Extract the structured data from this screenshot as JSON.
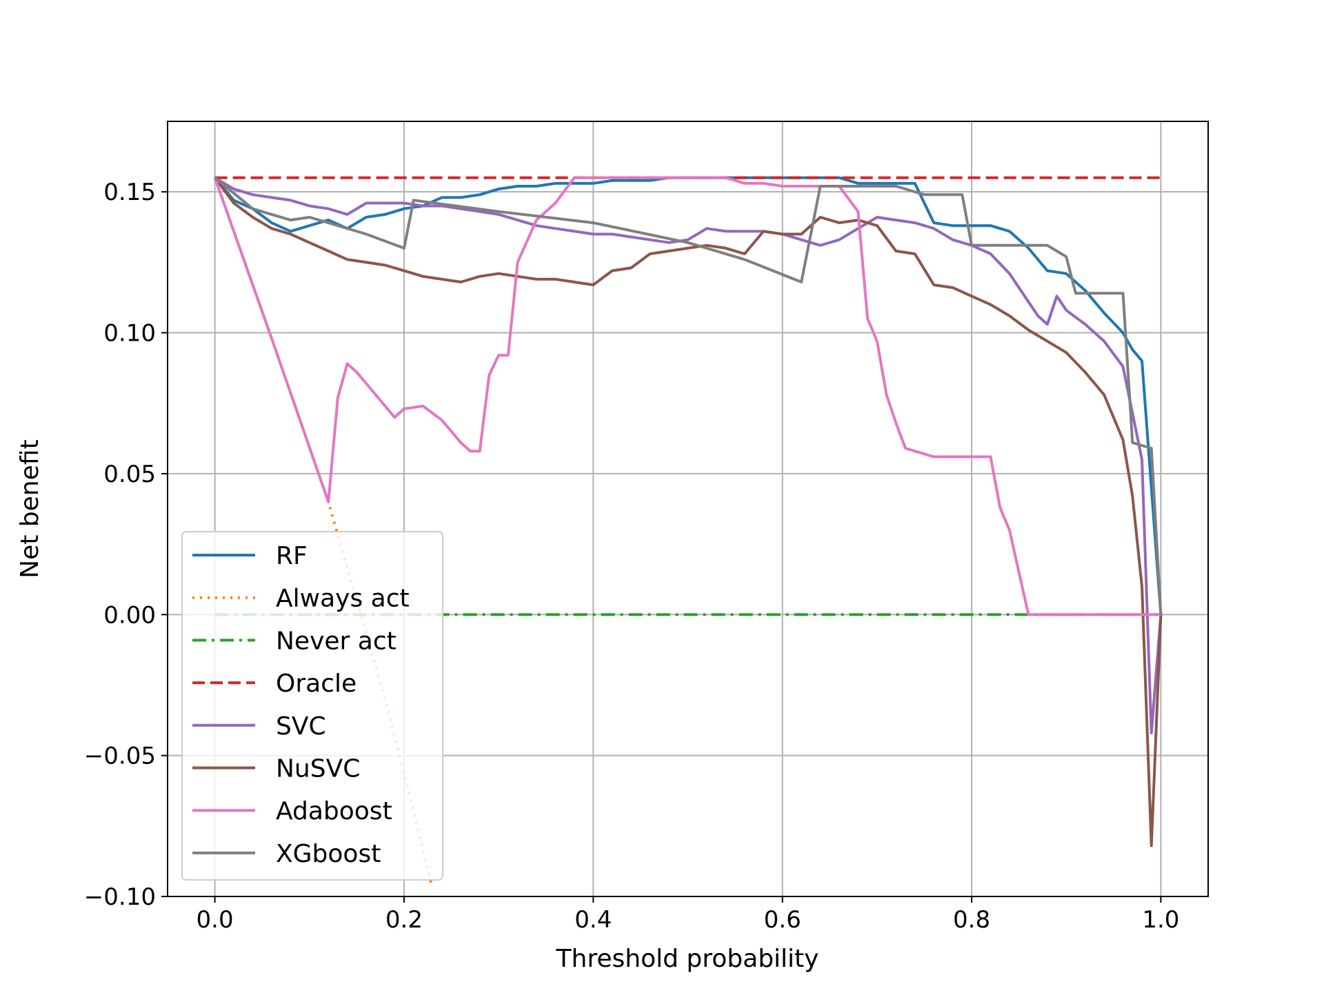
{
  "chart_data": {
    "type": "line",
    "title": "",
    "xlabel": "Threshold probability",
    "ylabel": "Net benefit",
    "xlim": [
      -0.05,
      1.05
    ],
    "ylim": [
      -0.1,
      0.175
    ],
    "xticks": [
      0.0,
      0.2,
      0.4,
      0.6,
      0.8,
      1.0
    ],
    "xtick_labels": [
      "0.0",
      "0.2",
      "0.4",
      "0.6",
      "0.8",
      "1.0"
    ],
    "yticks": [
      -0.1,
      -0.05,
      0.0,
      0.05,
      0.1,
      0.15
    ],
    "ytick_labels": [
      "−0.10",
      "−0.05",
      "0.00",
      "0.05",
      "0.10",
      "0.15"
    ],
    "grid": true,
    "legend_position": "lower-left",
    "series": [
      {
        "name": "RF",
        "color": "#1f77b4",
        "style": "solid",
        "x": [
          0,
          0.02,
          0.04,
          0.06,
          0.08,
          0.1,
          0.12,
          0.14,
          0.16,
          0.18,
          0.2,
          0.22,
          0.24,
          0.26,
          0.28,
          0.3,
          0.32,
          0.34,
          0.36,
          0.38,
          0.4,
          0.42,
          0.44,
          0.46,
          0.48,
          0.5,
          0.52,
          0.54,
          0.56,
          0.58,
          0.6,
          0.62,
          0.64,
          0.66,
          0.68,
          0.7,
          0.72,
          0.74,
          0.76,
          0.78,
          0.8,
          0.82,
          0.84,
          0.86,
          0.88,
          0.9,
          0.92,
          0.94,
          0.96,
          0.97,
          0.98,
          1.0
        ],
        "y": [
          0.155,
          0.147,
          0.144,
          0.139,
          0.136,
          0.138,
          0.14,
          0.137,
          0.141,
          0.142,
          0.144,
          0.145,
          0.148,
          0.148,
          0.149,
          0.151,
          0.152,
          0.152,
          0.153,
          0.153,
          0.153,
          0.154,
          0.154,
          0.154,
          0.155,
          0.155,
          0.155,
          0.155,
          0.155,
          0.155,
          0.155,
          0.155,
          0.155,
          0.155,
          0.153,
          0.153,
          0.153,
          0.153,
          0.139,
          0.138,
          0.138,
          0.138,
          0.136,
          0.13,
          0.122,
          0.121,
          0.115,
          0.107,
          0.1,
          0.094,
          0.09,
          0.0
        ]
      },
      {
        "name": "Always act",
        "color": "#ff7f0e",
        "style": "dotted",
        "x": [
          0,
          0.06,
          0.12,
          0.18,
          0.23
        ],
        "y": [
          0.155,
          0.098,
          0.04,
          -0.03,
          -0.097
        ]
      },
      {
        "name": "Never act",
        "color": "#2ca02c",
        "style": "dashdot",
        "x": [
          0,
          1.0
        ],
        "y": [
          0.0,
          0.0
        ]
      },
      {
        "name": "Oracle",
        "color": "#d62728",
        "style": "dashed",
        "x": [
          0,
          1.0
        ],
        "y": [
          0.155,
          0.155
        ]
      },
      {
        "name": "SVC",
        "color": "#9467bd",
        "style": "solid",
        "x": [
          0,
          0.02,
          0.04,
          0.06,
          0.08,
          0.1,
          0.12,
          0.14,
          0.16,
          0.18,
          0.2,
          0.22,
          0.24,
          0.26,
          0.28,
          0.3,
          0.32,
          0.34,
          0.36,
          0.38,
          0.4,
          0.42,
          0.44,
          0.46,
          0.48,
          0.5,
          0.52,
          0.54,
          0.56,
          0.58,
          0.6,
          0.62,
          0.64,
          0.66,
          0.68,
          0.7,
          0.72,
          0.74,
          0.76,
          0.78,
          0.8,
          0.82,
          0.84,
          0.86,
          0.87,
          0.88,
          0.89,
          0.9,
          0.92,
          0.94,
          0.96,
          0.98,
          0.99,
          1.0
        ],
        "y": [
          0.155,
          0.151,
          0.149,
          0.148,
          0.147,
          0.145,
          0.144,
          0.142,
          0.146,
          0.146,
          0.146,
          0.145,
          0.145,
          0.144,
          0.143,
          0.142,
          0.14,
          0.138,
          0.137,
          0.136,
          0.135,
          0.135,
          0.134,
          0.133,
          0.132,
          0.133,
          0.137,
          0.136,
          0.136,
          0.136,
          0.135,
          0.133,
          0.131,
          0.133,
          0.137,
          0.141,
          0.14,
          0.139,
          0.137,
          0.133,
          0.131,
          0.128,
          0.121,
          0.111,
          0.106,
          0.103,
          0.113,
          0.108,
          0.103,
          0.097,
          0.088,
          0.055,
          -0.042,
          0.0
        ]
      },
      {
        "name": "NuSVC",
        "color": "#8c564b",
        "style": "solid",
        "x": [
          0,
          0.02,
          0.04,
          0.06,
          0.08,
          0.1,
          0.12,
          0.14,
          0.16,
          0.18,
          0.2,
          0.22,
          0.24,
          0.26,
          0.28,
          0.3,
          0.32,
          0.34,
          0.36,
          0.38,
          0.4,
          0.42,
          0.44,
          0.46,
          0.48,
          0.5,
          0.52,
          0.54,
          0.56,
          0.58,
          0.6,
          0.62,
          0.64,
          0.66,
          0.68,
          0.7,
          0.72,
          0.74,
          0.76,
          0.78,
          0.8,
          0.82,
          0.84,
          0.86,
          0.88,
          0.9,
          0.92,
          0.94,
          0.96,
          0.97,
          0.98,
          0.99,
          1.0
        ],
        "y": [
          0.155,
          0.146,
          0.141,
          0.137,
          0.135,
          0.132,
          0.129,
          0.126,
          0.125,
          0.124,
          0.122,
          0.12,
          0.119,
          0.118,
          0.12,
          0.121,
          0.12,
          0.119,
          0.119,
          0.118,
          0.117,
          0.122,
          0.123,
          0.128,
          0.129,
          0.13,
          0.131,
          0.13,
          0.128,
          0.136,
          0.135,
          0.135,
          0.141,
          0.139,
          0.14,
          0.138,
          0.129,
          0.128,
          0.117,
          0.116,
          0.113,
          0.11,
          0.106,
          0.101,
          0.097,
          0.093,
          0.086,
          0.078,
          0.062,
          0.042,
          0.01,
          -0.082,
          0.0
        ]
      },
      {
        "name": "Adaboost",
        "color": "#e377c2",
        "style": "solid",
        "x": [
          0,
          0.06,
          0.12,
          0.13,
          0.14,
          0.15,
          0.16,
          0.18,
          0.19,
          0.2,
          0.22,
          0.24,
          0.26,
          0.27,
          0.28,
          0.29,
          0.3,
          0.31,
          0.32,
          0.34,
          0.36,
          0.38,
          0.4,
          0.44,
          0.48,
          0.52,
          0.54,
          0.56,
          0.58,
          0.6,
          0.62,
          0.64,
          0.66,
          0.68,
          0.69,
          0.7,
          0.71,
          0.72,
          0.73,
          0.76,
          0.8,
          0.82,
          0.83,
          0.84,
          0.86,
          0.9,
          0.94,
          0.98,
          1.0
        ],
        "y": [
          0.155,
          0.098,
          0.04,
          0.077,
          0.089,
          0.086,
          0.082,
          0.074,
          0.07,
          0.073,
          0.074,
          0.069,
          0.061,
          0.058,
          0.058,
          0.085,
          0.092,
          0.092,
          0.125,
          0.14,
          0.146,
          0.155,
          0.155,
          0.155,
          0.155,
          0.155,
          0.155,
          0.153,
          0.153,
          0.152,
          0.152,
          0.152,
          0.152,
          0.143,
          0.105,
          0.097,
          0.078,
          0.068,
          0.059,
          0.056,
          0.056,
          0.056,
          0.038,
          0.03,
          0.0,
          0.0,
          0.0,
          0.0,
          0.0
        ]
      },
      {
        "name": "XGboost",
        "color": "#7f7f7f",
        "style": "solid",
        "x": [
          0,
          0.04,
          0.06,
          0.08,
          0.1,
          0.12,
          0.16,
          0.2,
          0.21,
          0.3,
          0.4,
          0.5,
          0.56,
          0.62,
          0.64,
          0.66,
          0.72,
          0.75,
          0.79,
          0.8,
          0.88,
          0.89,
          0.9,
          0.91,
          0.96,
          0.97,
          0.98,
          0.99,
          1.0
        ],
        "y": [
          0.155,
          0.144,
          0.142,
          0.14,
          0.141,
          0.139,
          0.135,
          0.13,
          0.147,
          0.143,
          0.139,
          0.132,
          0.126,
          0.118,
          0.152,
          0.152,
          0.152,
          0.149,
          0.149,
          0.131,
          0.131,
          0.129,
          0.127,
          0.114,
          0.114,
          0.061,
          0.06,
          0.059,
          0.0
        ]
      }
    ]
  }
}
